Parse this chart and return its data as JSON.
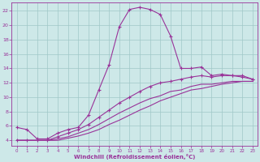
{
  "xlabel": "Windchill (Refroidissement éolien,°C)",
  "background_color": "#cde8e8",
  "grid_color": "#a0c8c8",
  "line_color": "#993399",
  "x_ticks": [
    0,
    1,
    2,
    3,
    4,
    5,
    6,
    7,
    8,
    9,
    10,
    11,
    12,
    13,
    14,
    15,
    16,
    17,
    18,
    19,
    20,
    21,
    22,
    23
  ],
  "y_ticks": [
    4,
    6,
    8,
    10,
    12,
    14,
    16,
    18,
    20,
    22
  ],
  "xlim": [
    -0.5,
    23.5
  ],
  "ylim": [
    3.2,
    23.2
  ],
  "curve1_x": [
    0,
    1,
    2,
    3,
    4,
    5,
    6,
    7,
    8,
    9,
    10,
    11,
    12,
    13,
    14,
    15,
    16,
    17,
    18,
    19,
    20,
    21,
    22,
    23
  ],
  "curve1_y": [
    5.8,
    5.5,
    4.2,
    4.2,
    5.0,
    5.5,
    5.8,
    7.5,
    11.0,
    14.5,
    19.8,
    22.2,
    22.5,
    22.2,
    21.5,
    18.5,
    14.0,
    14.0,
    14.2,
    13.0,
    13.2,
    13.0,
    13.0,
    12.5
  ],
  "curve2_x": [
    0,
    1,
    2,
    3,
    4,
    5,
    6,
    7,
    8,
    9,
    10,
    11,
    12,
    13,
    14,
    15,
    16,
    17,
    18,
    19,
    20,
    21,
    22,
    23
  ],
  "curve2_y": [
    4.0,
    4.0,
    4.0,
    4.0,
    4.5,
    5.0,
    5.5,
    6.2,
    7.2,
    8.2,
    9.2,
    10.0,
    10.8,
    11.5,
    12.0,
    12.2,
    12.5,
    12.8,
    13.0,
    12.8,
    13.0,
    13.0,
    12.8,
    12.5
  ],
  "curve3_x": [
    0,
    1,
    2,
    3,
    4,
    5,
    6,
    7,
    8,
    9,
    10,
    11,
    12,
    13,
    14,
    15,
    16,
    17,
    18,
    19,
    20,
    21,
    22,
    23
  ],
  "curve3_y": [
    4.0,
    4.0,
    4.0,
    4.0,
    4.2,
    4.5,
    5.0,
    5.5,
    6.2,
    7.0,
    7.8,
    8.5,
    9.2,
    9.8,
    10.2,
    10.8,
    11.0,
    11.5,
    11.8,
    11.8,
    12.0,
    12.2,
    12.2,
    12.2
  ],
  "curve4_x": [
    0,
    1,
    2,
    3,
    4,
    5,
    6,
    7,
    8,
    9,
    10,
    11,
    12,
    13,
    14,
    15,
    16,
    17,
    18,
    19,
    20,
    21,
    22,
    23
  ],
  "curve4_y": [
    4.0,
    4.0,
    4.0,
    4.0,
    4.0,
    4.3,
    4.6,
    5.0,
    5.5,
    6.2,
    6.8,
    7.5,
    8.2,
    8.8,
    9.5,
    10.0,
    10.5,
    11.0,
    11.2,
    11.5,
    11.8,
    12.0,
    12.2,
    12.2
  ]
}
